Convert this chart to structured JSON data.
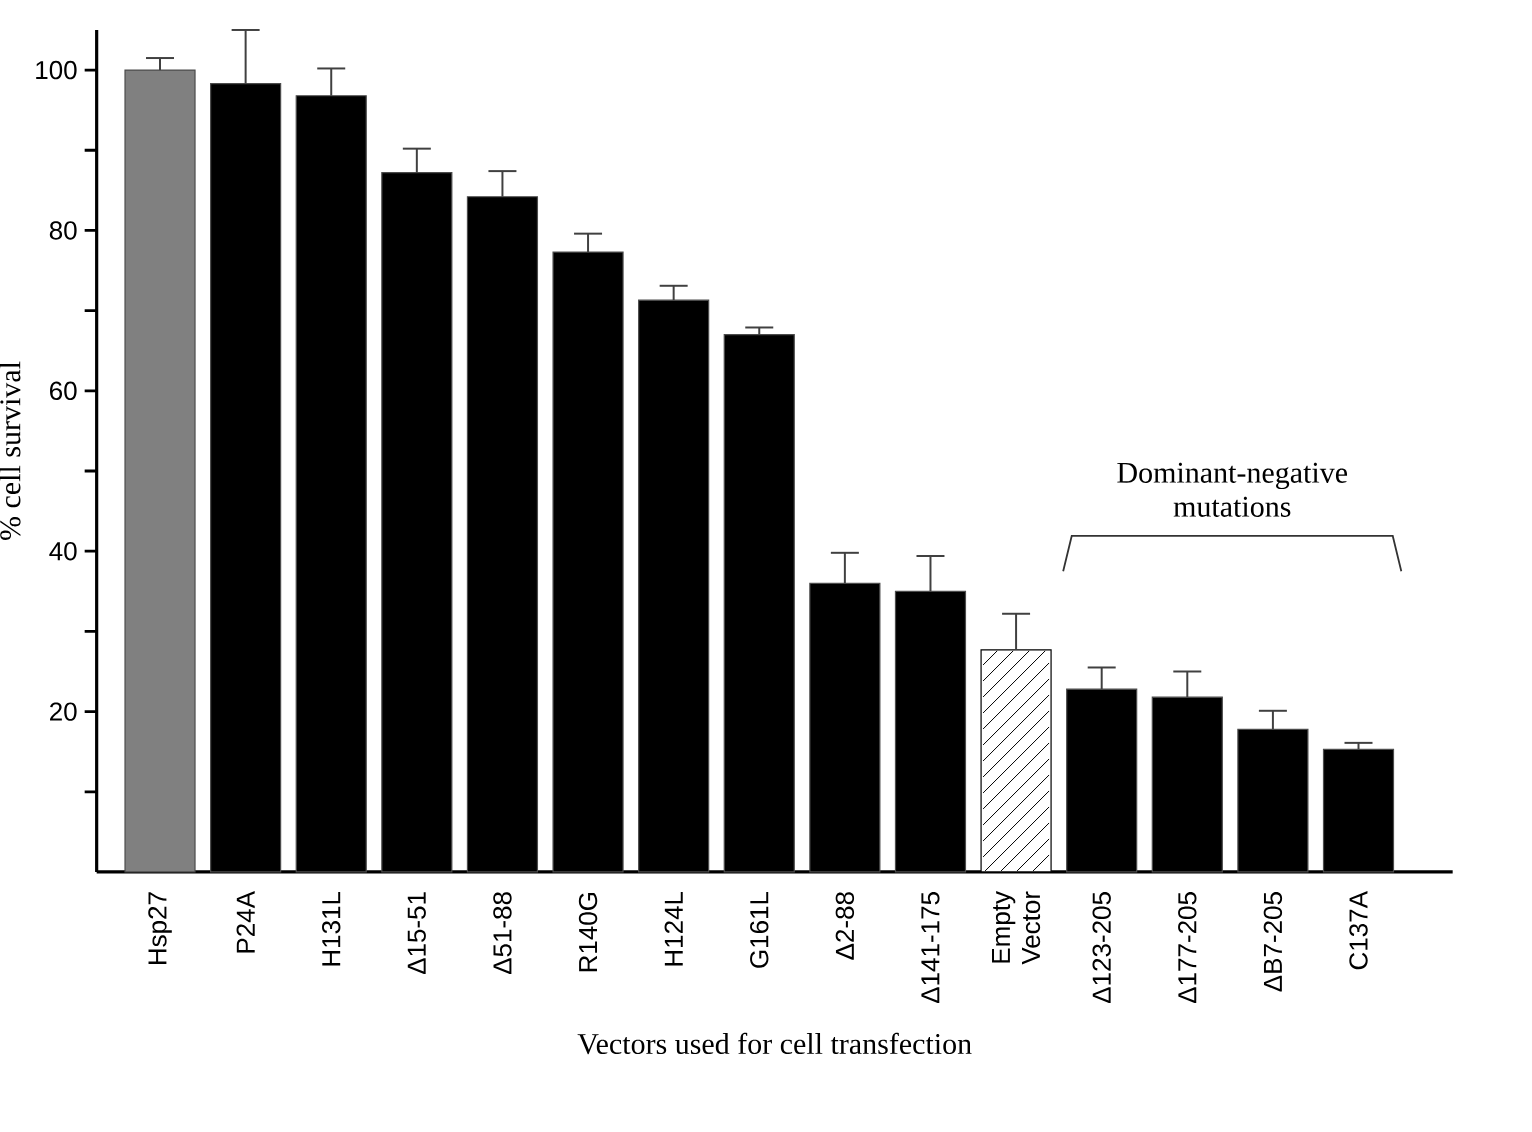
{
  "chart_data": {
    "type": "bar",
    "xlabel": "Vectors used for cell transfection",
    "ylabel": "% cell survival",
    "categories": [
      "Hsp27",
      "P24A",
      "H131L",
      "Δ15-51",
      "Δ51-88",
      "R140G",
      "H124L",
      "G161L",
      "Δ2-88",
      "Δ141-175",
      "Empty Vector",
      "Δ123-205",
      "Δ177-205",
      "ΔB7-205",
      "C137A"
    ],
    "values": [
      100,
      98.3,
      96.8,
      87.2,
      84.2,
      77.3,
      71.3,
      67,
      36,
      35,
      27.7,
      22.8,
      21.8,
      17.8,
      15.3
    ],
    "errors": [
      1.5,
      6.7,
      3.4,
      3,
      3.2,
      2.3,
      1.8,
      0.9,
      3.8,
      4.4,
      4.5,
      2.7,
      3.2,
      2.3,
      0.8
    ],
    "colors": [
      "#808080",
      "#000000",
      "#000000",
      "#000000",
      "#000000",
      "#000000",
      "#000000",
      "#000000",
      "#000000",
      "#000000",
      "#ffffff",
      "#000000",
      "#000000",
      "#000000",
      "#000000"
    ],
    "ylim": [
      0,
      105
    ],
    "yticks": [
      20,
      40,
      60,
      80,
      100
    ],
    "annotations": [
      "Dominant-negative mutations"
    ],
    "grid": false
  }
}
